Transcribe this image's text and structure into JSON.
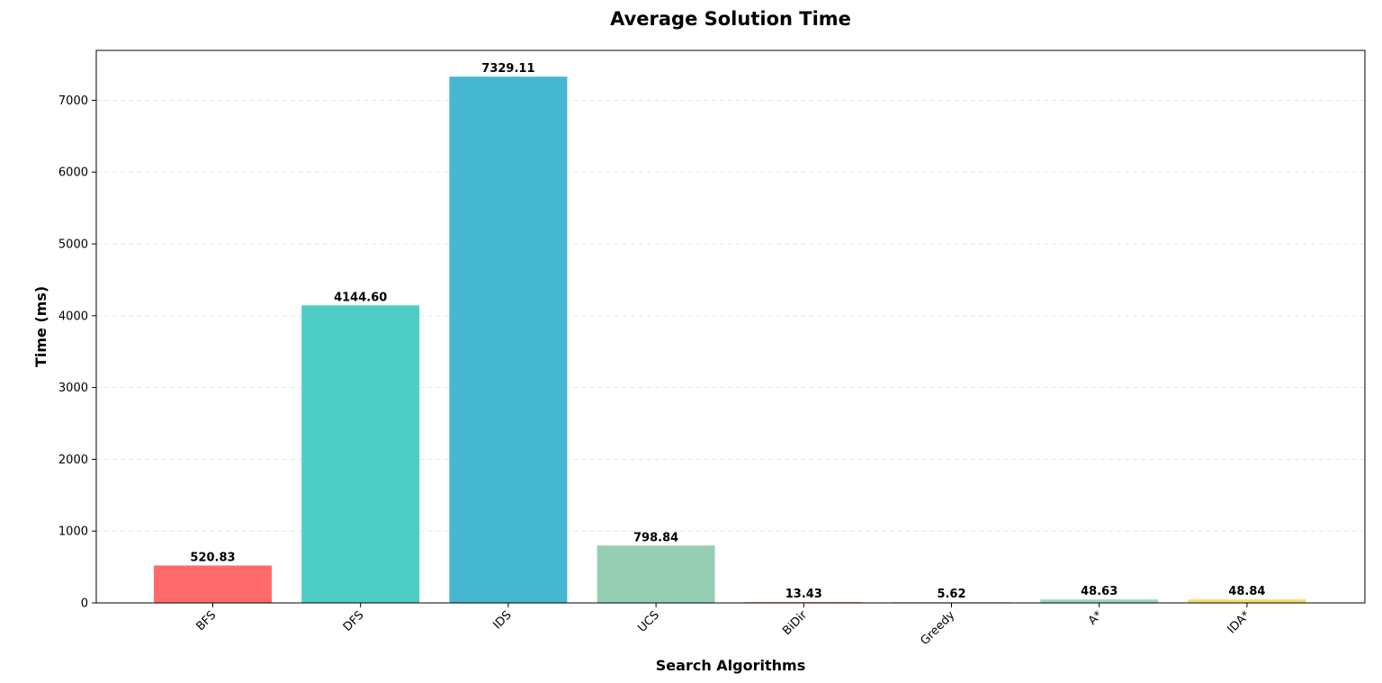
{
  "chart_data": {
    "type": "bar",
    "title": "Average Solution Time",
    "xlabel": "Search Algorithms",
    "ylabel": "Time (ms)",
    "categories": [
      "BFS",
      "DFS",
      "IDS",
      "UCS",
      "BiDir",
      "Greedy",
      "A*",
      "IDA*"
    ],
    "values": [
      520.83,
      4144.6,
      7329.11,
      798.84,
      13.43,
      5.62,
      48.63,
      48.84
    ],
    "value_labels": [
      "520.83",
      "4144.60",
      "7329.11",
      "798.84",
      "13.43",
      "5.62",
      "48.63",
      "48.84"
    ],
    "colors": [
      "#ff6b6b",
      "#4ecdc4",
      "#45b7d1",
      "#96ceb4",
      "#ffa07a",
      "#dda0dd",
      "#98d8c8",
      "#f7dc6f"
    ],
    "ylim": [
      0,
      7695
    ],
    "yticks": [
      0,
      1000,
      2000,
      3000,
      4000,
      5000,
      6000,
      7000
    ],
    "grid": true
  }
}
